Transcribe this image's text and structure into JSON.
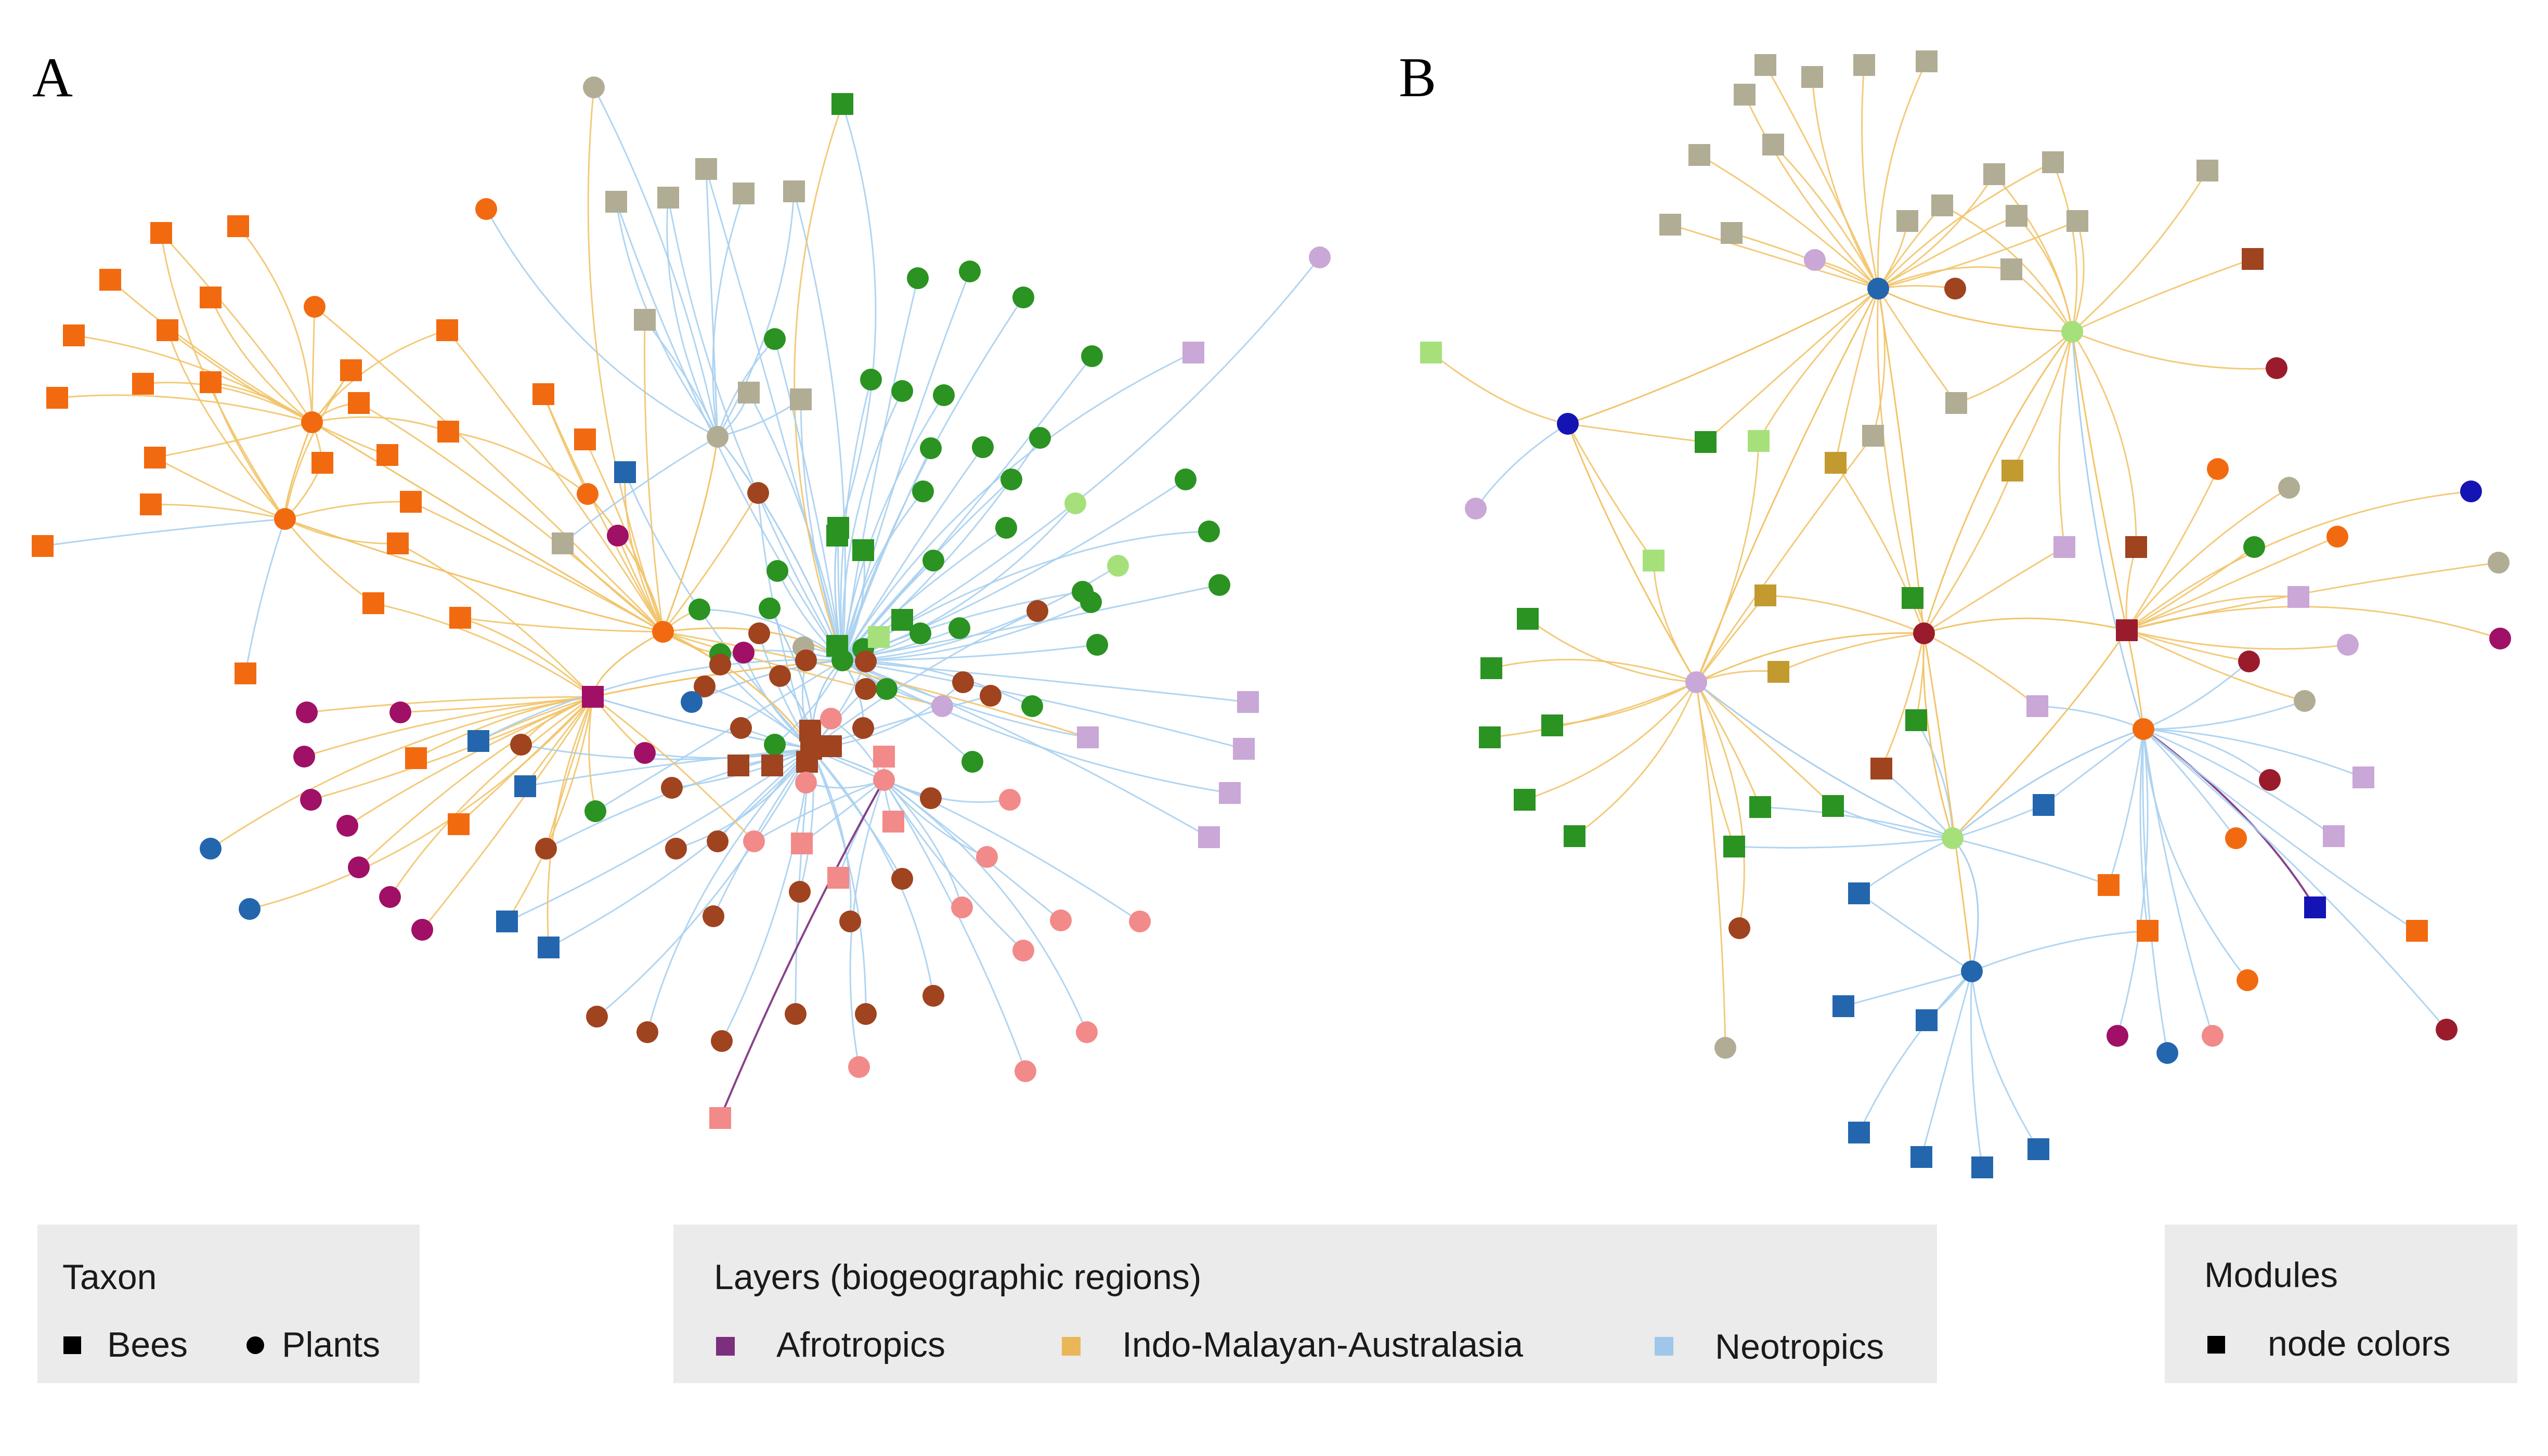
{
  "panels": [
    {
      "letter": "A"
    },
    {
      "letter": "B"
    }
  ],
  "legend": {
    "taxon": {
      "title": "Taxon",
      "items": [
        {
          "shape": "square",
          "label": "Bees"
        },
        {
          "shape": "circle",
          "label": "Plants"
        }
      ]
    },
    "layers": {
      "title": "Layers (biogeographic regions)",
      "items": [
        {
          "label": "Afrotropics",
          "color": "#7b2f7d"
        },
        {
          "label": "Indo-Malayan-Australasia",
          "color": "#e9b75a"
        },
        {
          "label": "Neotropics",
          "color": "#9fc7ea"
        }
      ]
    },
    "modules": {
      "title": "Modules",
      "items": [
        {
          "shape": "square",
          "label": "node colors"
        }
      ]
    }
  },
  "colors": {
    "layer_afrotropics": "#7b2f7d",
    "layer_indo_malayan": "#f2c46a",
    "layer_neotropics": "#a9d0ef",
    "legend_bg": "#ebebeb"
  }
}
